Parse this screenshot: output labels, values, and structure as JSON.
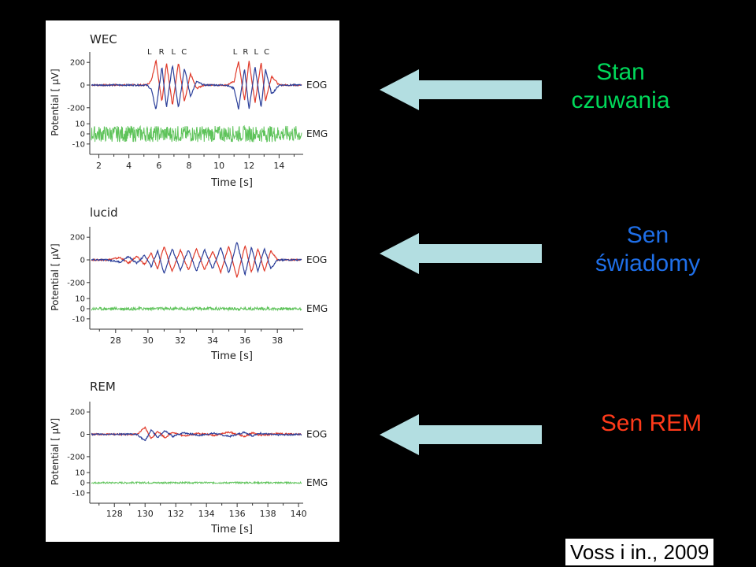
{
  "colors": {
    "eog_right": "#e03a2a",
    "eog_left": "#2b3f9a",
    "emg": "#5ec35a",
    "arrow": "#b3dee1",
    "cap_wake": "#00d85a",
    "cap_lucid": "#1f6fe8",
    "cap_rem": "#ff3a1a"
  },
  "captions": {
    "wake": [
      "Stan",
      "czuwania"
    ],
    "lucid": [
      "Sen",
      "świadomy"
    ],
    "rem": "Sen REM",
    "citation": "Voss i in., 2009"
  },
  "chart_data": [
    {
      "type": "line",
      "title": "WEC",
      "xlabel": "Time [s]",
      "ylabel": "Potential [ μV]",
      "xlim": [
        1.5,
        15.5
      ],
      "xticks": [
        2,
        4,
        6,
        8,
        10,
        12,
        14
      ],
      "eog_yticks": [
        200,
        0,
        -200
      ],
      "emg_yticks": [
        10,
        0,
        -10
      ],
      "channel_labels": [
        "EOG",
        "EMG"
      ],
      "eye_marks": [
        {
          "t": 6.0,
          "label": "L"
        },
        {
          "t": 6.8,
          "label": "R"
        },
        {
          "t": 7.6,
          "label": "L"
        },
        {
          "t": 8.3,
          "label": "C"
        },
        {
          "t": 11.7,
          "label": "L"
        },
        {
          "t": 12.4,
          "label": "R"
        },
        {
          "t": 13.1,
          "label": "L"
        },
        {
          "t": 13.8,
          "label": "C"
        }
      ],
      "series": [
        {
          "channel": "EOG",
          "x": [
            1.5,
            5.2,
            5.5,
            5.8,
            6.2,
            6.5,
            6.9,
            7.3,
            7.7,
            8.1,
            8.5,
            9.0,
            10.5,
            11.0,
            11.3,
            11.7,
            12.0,
            12.4,
            12.8,
            13.1,
            13.5,
            14.0,
            15.5
          ],
          "y": [
            0,
            0,
            40,
            220,
            -150,
            200,
            -180,
            200,
            -150,
            100,
            -30,
            0,
            0,
            30,
            210,
            -140,
            210,
            -160,
            200,
            -140,
            80,
            0,
            0
          ]
        },
        {
          "channel": "EOG",
          "x": [
            1.5,
            5.2,
            5.5,
            5.8,
            6.2,
            6.5,
            6.9,
            7.3,
            7.7,
            8.1,
            8.5,
            9.0,
            10.5,
            11.0,
            11.3,
            11.7,
            12.0,
            12.4,
            12.8,
            13.1,
            13.5,
            14.0,
            15.5
          ],
          "y": [
            0,
            0,
            -40,
            -220,
            160,
            -200,
            180,
            -200,
            150,
            -100,
            30,
            0,
            0,
            -30,
            -210,
            140,
            -210,
            160,
            -200,
            140,
            -80,
            0,
            0
          ]
        },
        {
          "channel": "EMG",
          "amplitude": 8
        }
      ]
    },
    {
      "type": "line",
      "title": "lucid",
      "xlabel": "Time [s]",
      "ylabel": "Potential [ μV]",
      "xlim": [
        26.5,
        39.5
      ],
      "xticks": [
        28,
        30,
        32,
        34,
        36,
        38
      ],
      "eog_yticks": [
        200,
        0,
        -200
      ],
      "emg_yticks": [
        10,
        0,
        -10
      ],
      "channel_labels": [
        "EOG",
        "EMG"
      ],
      "series": [
        {
          "channel": "EOG",
          "x": [
            26.5,
            27.5,
            28.3,
            28.8,
            29.3,
            29.8,
            30.2,
            30.6,
            31.0,
            31.5,
            32.0,
            32.5,
            33.0,
            33.5,
            34.0,
            34.5,
            35.0,
            35.5,
            36.0,
            36.4,
            36.8,
            37.2,
            37.6,
            38.0,
            39.5
          ],
          "y": [
            0,
            0,
            20,
            -30,
            30,
            -40,
            60,
            -80,
            120,
            -100,
            90,
            -90,
            100,
            -90,
            80,
            -110,
            120,
            -160,
            130,
            -110,
            100,
            -100,
            80,
            0,
            0
          ]
        },
        {
          "channel": "EOG",
          "x": [
            26.5,
            27.5,
            28.3,
            28.8,
            29.3,
            29.8,
            30.2,
            30.6,
            31.0,
            31.5,
            32.0,
            32.5,
            33.0,
            33.5,
            34.0,
            34.5,
            35.0,
            35.5,
            36.0,
            36.4,
            36.8,
            37.2,
            37.6,
            38.0,
            39.5
          ],
          "y": [
            0,
            0,
            -20,
            30,
            -30,
            40,
            -60,
            80,
            -120,
            100,
            -90,
            90,
            -100,
            90,
            -80,
            110,
            -120,
            160,
            -130,
            110,
            -100,
            100,
            -80,
            0,
            0
          ]
        },
        {
          "channel": "EMG",
          "amplitude": 1.5
        }
      ]
    },
    {
      "type": "line",
      "title": "REM",
      "xlabel": "Time [s]",
      "ylabel": "Potential [ μV]",
      "xlim": [
        126.5,
        140.2
      ],
      "xticks": [
        128,
        130,
        132,
        134,
        136,
        138,
        140
      ],
      "eog_yticks": [
        200,
        0,
        -200
      ],
      "emg_yticks": [
        10,
        0,
        -10
      ],
      "channel_labels": [
        "EOG",
        "EMG"
      ],
      "series": [
        {
          "channel": "EOG",
          "x": [
            126.5,
            129.5,
            130.0,
            130.4,
            130.8,
            131.3,
            131.8,
            132.5,
            133.5,
            134.5,
            135.5,
            136.5,
            137.0,
            137.5,
            138.5,
            140.2
          ],
          "y": [
            0,
            0,
            60,
            -40,
            30,
            -30,
            20,
            -15,
            10,
            -10,
            20,
            -20,
            15,
            -10,
            5,
            0
          ]
        },
        {
          "channel": "EOG",
          "x": [
            126.5,
            129.5,
            130.0,
            130.4,
            130.8,
            131.3,
            131.8,
            132.5,
            133.5,
            134.5,
            135.5,
            136.5,
            137.0,
            137.5,
            138.5,
            140.2
          ],
          "y": [
            0,
            0,
            -60,
            40,
            -30,
            30,
            -20,
            15,
            -10,
            10,
            -20,
            20,
            -15,
            10,
            -5,
            0
          ]
        },
        {
          "channel": "EMG",
          "amplitude": 0.8
        }
      ]
    }
  ]
}
